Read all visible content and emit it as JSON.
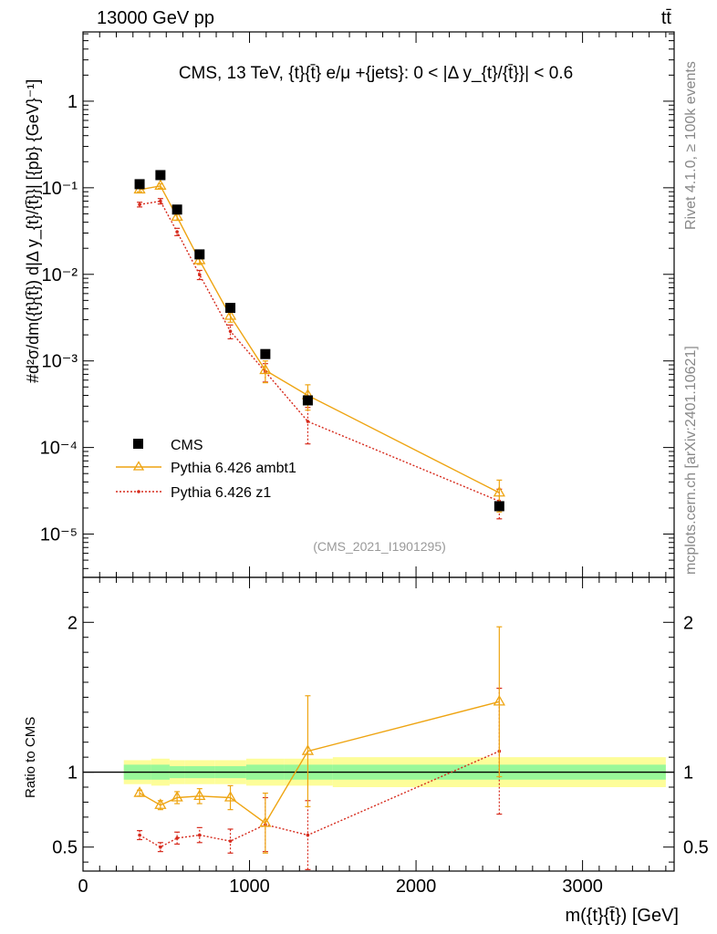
{
  "header": {
    "left": "13000 GeV pp",
    "right": "tt̄"
  },
  "side_labels": {
    "rivet": "Rivet 4.1.0, ≥ 100k events",
    "mcplots": "mcplots.cern.ch [arXiv:2401.10621]"
  },
  "chart_data": [
    {
      "type": "scatter",
      "panel": "main",
      "title": "CMS, 13 TeV, {t}{t̄} e/μ +{jets}: 0 < |Δ y_{t}/{t̄}}| < 0.6",
      "ylabel": "#d²σ/dm({t}{t̄}) d|Δ y_{t}/{t̄}}| [{pb} {GeV}⁻¹]",
      "xlabel": "m({t}{t̄}) [GeV]",
      "xlim": [
        0,
        3550
      ],
      "ylim_log10": [
        -5.5,
        0.8
      ],
      "y_scale": "log",
      "y_ticks": [
        {
          "exp": 0,
          "label": "1"
        },
        {
          "exp": -1,
          "label": "10⁻¹"
        },
        {
          "exp": -2,
          "label": "10⁻²"
        },
        {
          "exp": -3,
          "label": "10⁻³"
        },
        {
          "exp": -4,
          "label": "10⁻⁴"
        },
        {
          "exp": -5,
          "label": "10⁻⁵"
        }
      ],
      "watermark": "(CMS_2021_I1901295)",
      "legend_position": "bottom-left",
      "series": [
        {
          "name": "CMS",
          "marker": "filled-square",
          "color": "#000000",
          "x": [
            340,
            465,
            565,
            700,
            885,
            1095,
            1350,
            2500
          ],
          "y": [
            0.11,
            0.14,
            0.056,
            0.017,
            0.0041,
            0.0012,
            0.00035,
            2.1e-05
          ],
          "xerr_lo": [
            0,
            0,
            0,
            0,
            0,
            0,
            0,
            0
          ],
          "xerr_hi": [
            0,
            0,
            0,
            0,
            0,
            0,
            0,
            0
          ]
        },
        {
          "name": "Pythia 6.426 ambt1",
          "marker": "open-triangle",
          "color": "#eea411",
          "line": "solid",
          "x": [
            340,
            465,
            565,
            700,
            885,
            1095,
            1350,
            2500
          ],
          "y": [
            0.095,
            0.105,
            0.046,
            0.0145,
            0.0033,
            0.00078,
            0.0004,
            3e-05
          ],
          "yerr": [
            0.005,
            0.006,
            0.004,
            0.0015,
            0.0005,
            0.00022,
            0.00013,
            1.2e-05
          ]
        },
        {
          "name": "Pythia 6.426 z1",
          "marker": "small-dot",
          "color": "#d62a1c",
          "line": "dotted",
          "x": [
            340,
            465,
            565,
            700,
            885,
            1095,
            1350,
            2500
          ],
          "y": [
            0.064,
            0.07,
            0.031,
            0.0099,
            0.0022,
            0.00075,
            0.0002,
            2.4e-05
          ],
          "yerr": [
            0.004,
            0.005,
            0.003,
            0.0012,
            0.0004,
            0.00018,
            9e-05,
            9e-06
          ]
        }
      ]
    },
    {
      "type": "scatter",
      "panel": "ratio",
      "ylabel": "Ratio to CMS",
      "xlim": [
        0,
        3550
      ],
      "ylim": [
        0.34,
        2.3
      ],
      "y_ticks": [
        0.5,
        1,
        2
      ],
      "x_ticks": [
        0,
        1000,
        2000,
        3000
      ],
      "reference_line": 1.0,
      "band_inner_color": "#99f899",
      "band_outer_color": "#fdfd99",
      "bins": [
        {
          "lo": 245,
          "hi": 410,
          "inner": [
            0.95,
            1.05
          ],
          "outer": [
            0.92,
            1.08
          ]
        },
        {
          "lo": 410,
          "hi": 520,
          "inner": [
            0.95,
            1.05
          ],
          "outer": [
            0.91,
            1.09
          ]
        },
        {
          "lo": 520,
          "hi": 610,
          "inner": [
            0.96,
            1.04
          ],
          "outer": [
            0.92,
            1.08
          ]
        },
        {
          "lo": 610,
          "hi": 790,
          "inner": [
            0.96,
            1.04
          ],
          "outer": [
            0.92,
            1.08
          ]
        },
        {
          "lo": 790,
          "hi": 980,
          "inner": [
            0.96,
            1.04
          ],
          "outer": [
            0.92,
            1.08
          ]
        },
        {
          "lo": 980,
          "hi": 1210,
          "inner": [
            0.95,
            1.05
          ],
          "outer": [
            0.91,
            1.09
          ]
        },
        {
          "lo": 1210,
          "hi": 1500,
          "inner": [
            0.95,
            1.05
          ],
          "outer": [
            0.91,
            1.09
          ]
        },
        {
          "lo": 1500,
          "hi": 3500,
          "inner": [
            0.95,
            1.05
          ],
          "outer": [
            0.9,
            1.1
          ]
        }
      ],
      "series": [
        {
          "name": "Pythia 6.426 ambt1",
          "color": "#eea411",
          "line": "solid",
          "x": [
            340,
            465,
            565,
            700,
            885,
            1095,
            1350,
            2500
          ],
          "y": [
            0.86,
            0.78,
            0.83,
            0.84,
            0.83,
            0.66,
            1.14,
            1.47
          ],
          "yerr": [
            0.02,
            0.03,
            0.04,
            0.05,
            0.08,
            0.2,
            0.37,
            0.5
          ]
        },
        {
          "name": "Pythia 6.426 z1",
          "color": "#d62a1c",
          "line": "dotted",
          "x": [
            340,
            465,
            565,
            700,
            885,
            1095,
            1350,
            2500
          ],
          "y": [
            0.58,
            0.5,
            0.56,
            0.58,
            0.54,
            0.65,
            0.58,
            1.14
          ],
          "yerr": [
            0.03,
            0.03,
            0.04,
            0.05,
            0.08,
            0.18,
            0.23,
            0.42
          ]
        }
      ]
    }
  ]
}
